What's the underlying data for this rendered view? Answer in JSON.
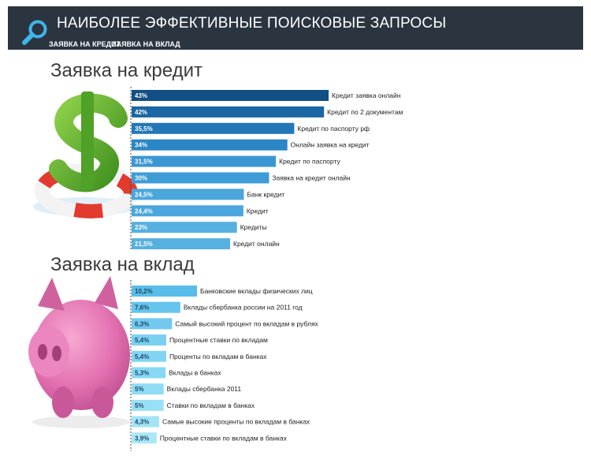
{
  "header": {
    "title": "НАИБОЛЕЕ ЭФФЕКТИВНЫЕ ПОИСКОВЫЕ ЗАПРОСЫ",
    "links": [
      "ЗАЯВКА НА КРЕДИТ",
      "ЗАЯВКА НА ВКЛАД"
    ],
    "icon": "search-icon",
    "background_color": "#2b3540"
  },
  "sections": [
    "Заявка на кредит",
    "Заявка на вклад"
  ],
  "chart_data": [
    {
      "type": "bar",
      "orientation": "horizontal",
      "title": "Заявка на кредит",
      "image": "dollar-lifebuoy-illustration",
      "categories": [
        "Кредит заявка онлайн",
        "Кредит по 2 документам",
        "Кредит по паспорту рф",
        "Онлайн заявка на кредит",
        "Кредит по паспорту",
        "Заявка на кредит онлайн",
        "Банк кредит",
        "Кредит",
        "Кредиты",
        "Кредит онлайн"
      ],
      "value_labels": [
        "43%",
        "42%",
        "35,5%",
        "34%",
        "31,5%",
        "30%",
        "24,5%",
        "24,4%",
        "23%",
        "21,5%"
      ],
      "values": [
        43,
        42,
        35.5,
        34,
        31.5,
        30,
        24.5,
        24.4,
        23,
        21.5
      ],
      "colors": [
        "#124f85",
        "#1b67a3",
        "#2278b7",
        "#2a86c4",
        "#3b97d2",
        "#3e9cd6",
        "#4aa6dc",
        "#4aa6dc",
        "#56b0e0",
        "#56b0e0"
      ]
    },
    {
      "type": "bar",
      "orientation": "horizontal",
      "title": "Заявка на вклад",
      "image": "piggy-bank-illustration",
      "categories": [
        "Банковские вклады физических лиц",
        "Вклады сбербанка россии на 2011 год",
        "Самый высокий процент по вкладам в рублях",
        "Процентные ставки по вкладам",
        "Проценты по вкладам в банках",
        "Вклады в банках",
        "Вклады сбербанка 2011",
        "Ставки по вкладам в банках",
        "Самые высокие проценты по вкладам в банках",
        "Процентные ставки по вкладам в банках"
      ],
      "value_labels": [
        "10,2%",
        "7,6%",
        "6,3%",
        "5,4%",
        "5,4%",
        "5,3%",
        "5%",
        "5%",
        "4,3%",
        "3,9%"
      ],
      "values": [
        10.2,
        7.6,
        6.3,
        5.4,
        5.4,
        5.3,
        5,
        5,
        4.3,
        3.9
      ],
      "colors": [
        "#58bde8",
        "#66c5ec",
        "#6fcaee",
        "#7ad0f0",
        "#82d5f2",
        "#88d8f3",
        "#90dcf4",
        "#98e0f5",
        "#a2e4f6",
        "#aae7f7"
      ]
    }
  ]
}
